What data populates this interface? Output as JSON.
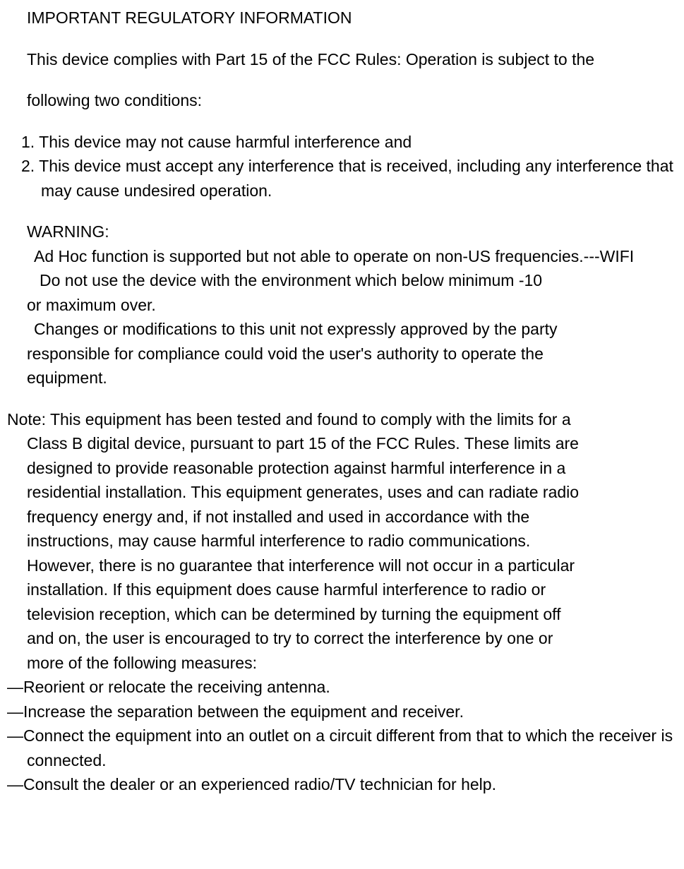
{
  "document": {
    "title": "IMPORTANT REGULATORY INFORMATION",
    "intro_line1": "This device complies with Part 15 of the FCC Rules: Operation is subject to the",
    "intro_line2": "following two conditions:",
    "conditions": [
      "1. This device may not cause harmful interference and",
      "2. This device must accept any interference that is received, including any interference that may cause undesired operation."
    ],
    "warning_label": "WARNING:",
    "warning_lines": [
      "Ad Hoc function is supported but not able to operate on non-US frequencies.---WIFI",
      "Do not use the device with the environment which below minimum -10",
      "or maximum over.",
      "Changes or modifications to this unit not expressly approved by the party",
      "responsible for compliance could void the user's authority to operate the",
      "equipment."
    ],
    "note_first": "Note: This equipment has been tested and found to comply with the limits for a",
    "note_body": [
      "Class B digital device, pursuant to part 15 of the FCC Rules. These limits are",
      "designed to provide reasonable protection against harmful interference in a",
      "residential installation. This equipment generates, uses and can radiate radio",
      "frequency energy and, if not installed and used in accordance with the",
      "instructions, may cause harmful interference to radio communications.",
      "However, there is no guarantee that interference will not occur in a particular",
      "installation. If this equipment does cause harmful interference to radio or",
      "television reception, which can be determined by turning the equipment off",
      "and on, the user is encouraged to try to correct the interference by one or",
      "more of the following measures:"
    ],
    "measures": [
      "—Reorient or relocate the receiving antenna.",
      "—Increase the separation between the equipment and receiver.",
      "—Connect the equipment into an outlet on a circuit different from that to which the receiver is connected.",
      "—Consult the dealer or an experienced radio/TV technician for help."
    ],
    "styling": {
      "font_family": "Arial",
      "font_size_pt": 17,
      "text_color": "#000000",
      "background_color": "#ffffff",
      "line_height": 1.5
    }
  }
}
